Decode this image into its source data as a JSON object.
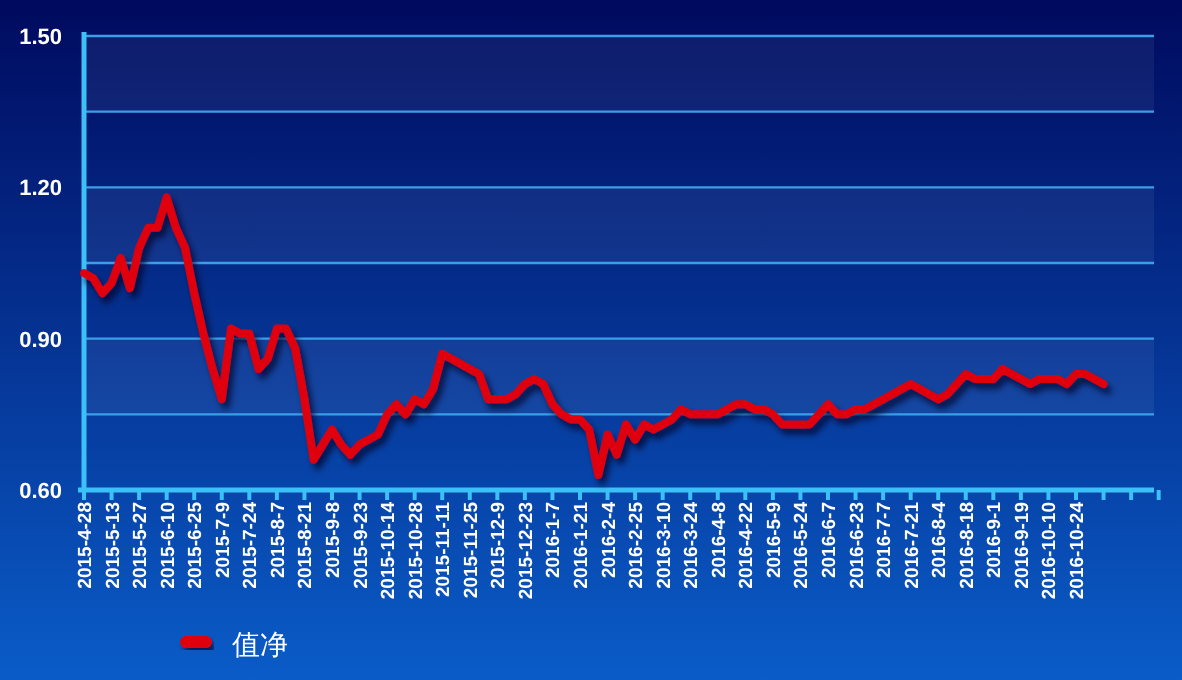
{
  "chart_data": {
    "type": "line",
    "categories": [
      "2015-4-28",
      null,
      null,
      "2015-5-13",
      null,
      null,
      "2015-5-27",
      null,
      null,
      "2015-6-10",
      null,
      null,
      "2015-6-25",
      null,
      null,
      "2015-7-9",
      null,
      null,
      "2015-7-24",
      null,
      null,
      "2015-8-7",
      null,
      null,
      "2015-8-21",
      null,
      null,
      "2015-9-8",
      null,
      null,
      "2015-9-23",
      null,
      null,
      "2015-10-14",
      null,
      null,
      "2015-10-28",
      null,
      null,
      "2015-11-11",
      null,
      null,
      "2015-11-25",
      null,
      null,
      "2015-12-9",
      null,
      null,
      "2015-12-23",
      null,
      null,
      "2016-1-7",
      null,
      null,
      "2016-1-21",
      null,
      null,
      "2016-2-4",
      null,
      null,
      "2016-2-25",
      null,
      null,
      "2016-3-10",
      null,
      null,
      "2016-3-24",
      null,
      null,
      "2016-4-8",
      null,
      null,
      "2016-4-22",
      null,
      null,
      "2016-5-9",
      null,
      null,
      "2016-5-24",
      null,
      null,
      "2016-6-7",
      null,
      null,
      "2016-6-23",
      null,
      null,
      "2016-7-7",
      null,
      null,
      "2016-7-21",
      null,
      null,
      "2016-8-4",
      null,
      null,
      "2016-8-18",
      null,
      null,
      "2016-9-1",
      null,
      null,
      "2016-9-19",
      null,
      null,
      "2016-10-10",
      null,
      null,
      "2016-10-24",
      null,
      null,
      null,
      null,
      null,
      null,
      null,
      null,
      null,
      null,
      null
    ],
    "series": [
      {
        "name": "值净",
        "color": "#e00010",
        "values": [
          1.03,
          1.02,
          0.99,
          1.01,
          1.06,
          1.0,
          1.08,
          1.12,
          1.12,
          1.18,
          1.12,
          1.08,
          0.99,
          0.91,
          0.84,
          0.78,
          0.92,
          0.91,
          0.91,
          0.84,
          0.86,
          0.92,
          0.92,
          0.88,
          0.78,
          0.66,
          0.69,
          0.72,
          0.69,
          0.67,
          0.69,
          0.7,
          0.71,
          0.75,
          0.77,
          0.75,
          0.78,
          0.77,
          0.8,
          0.87,
          0.86,
          0.85,
          0.84,
          0.83,
          0.78,
          0.78,
          0.78,
          0.79,
          0.81,
          0.82,
          0.81,
          0.77,
          0.75,
          0.74,
          0.74,
          0.72,
          0.63,
          0.71,
          0.67,
          0.73,
          0.7,
          0.73,
          0.72,
          0.73,
          0.74,
          0.76,
          0.75,
          0.75,
          0.75,
          0.75,
          0.76,
          0.77,
          0.77,
          0.76,
          0.76,
          0.75,
          0.73,
          0.73,
          0.73,
          0.73,
          0.75,
          0.77,
          0.75,
          0.75,
          0.76,
          0.76,
          0.77,
          0.78,
          0.79,
          0.8,
          0.81,
          0.8,
          0.79,
          0.78,
          0.79,
          0.81,
          0.83,
          0.82,
          0.82,
          0.82,
          0.84,
          0.83,
          0.82,
          0.81,
          0.82,
          0.82,
          0.82,
          0.81,
          0.83,
          0.83,
          0.82,
          0.81,
          null,
          null,
          null,
          null,
          null,
          null,
          null,
          null
        ]
      }
    ],
    "ylim": [
      0.6,
      1.5
    ],
    "yticks": [
      {
        "value": 0.6,
        "label": "0.60"
      },
      {
        "value": 0.75,
        "label": null
      },
      {
        "value": 0.9,
        "label": "0.90"
      },
      {
        "value": 1.05,
        "label": null
      },
      {
        "value": 1.2,
        "label": "1.20"
      },
      {
        "value": 1.35,
        "label": null
      },
      {
        "value": 1.5,
        "label": "1.50"
      }
    ],
    "grid": "y",
    "legend": "bottom left",
    "line_style": "solid",
    "marker": "none"
  }
}
